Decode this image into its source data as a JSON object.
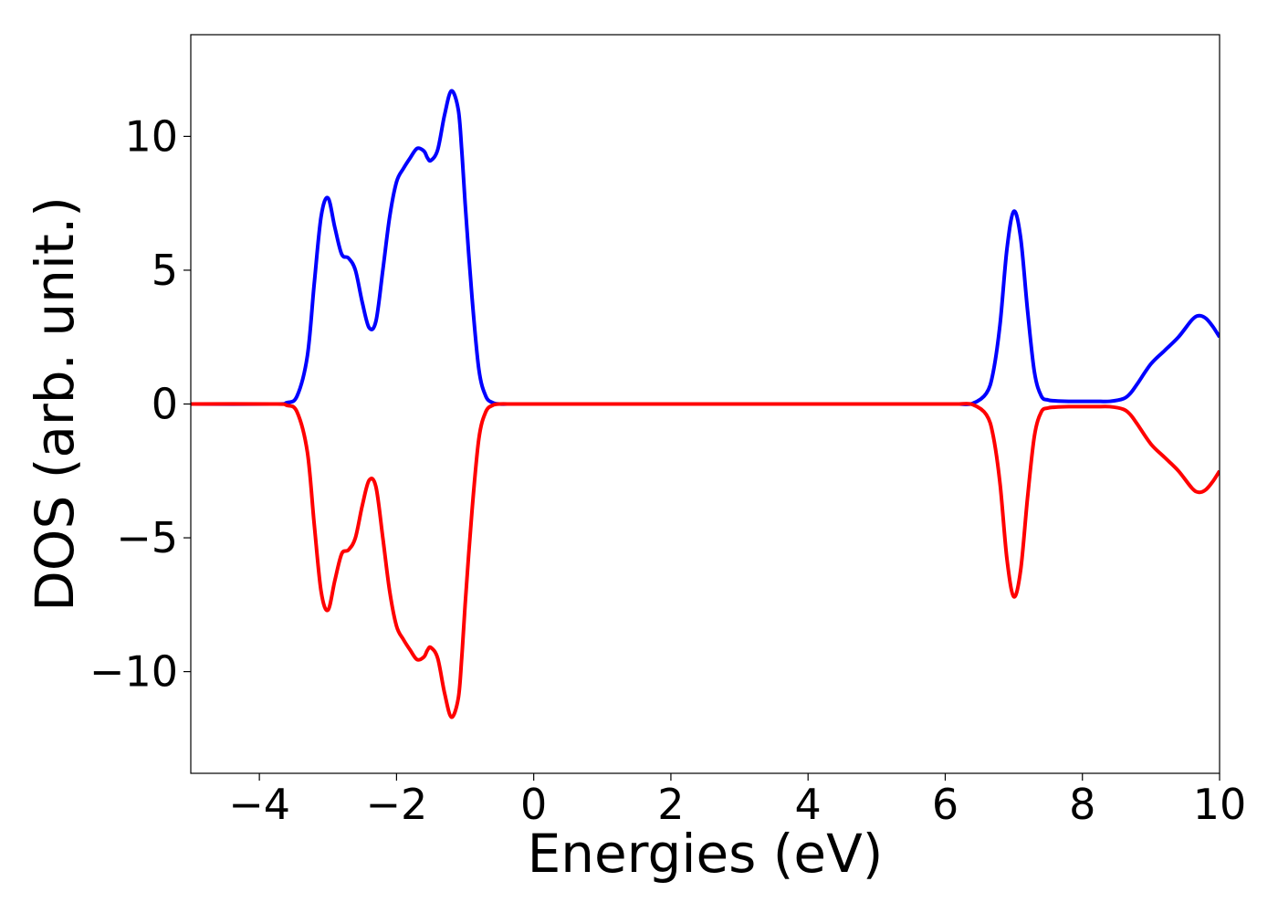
{
  "chart_data": {
    "type": "line",
    "title": "",
    "xlabel": "Energies (eV)",
    "ylabel": "DOS (arb. unit.)",
    "xlim": [
      -5,
      10
    ],
    "ylim": [
      -13.8,
      13.8
    ],
    "xticks": [
      -4,
      -2,
      0,
      2,
      4,
      6,
      8,
      10
    ],
    "yticks": [
      -10,
      -5,
      0,
      5,
      10
    ],
    "xtick_labels": [
      "−4",
      "−2",
      "0",
      "2",
      "4",
      "6",
      "8",
      "10"
    ],
    "ytick_labels": [
      "−10",
      "−5",
      "0",
      "5",
      "10"
    ],
    "grid": false,
    "legend": "none",
    "series": [
      {
        "color": "#0000ff",
        "x": [
          -5,
          -3.8,
          -3.6,
          -3.45,
          -3.3,
          -3.2,
          -3.1,
          -3.0,
          -2.9,
          -2.8,
          -2.7,
          -2.6,
          -2.5,
          -2.4,
          -2.3,
          -2.2,
          -2.1,
          -2.0,
          -1.9,
          -1.8,
          -1.7,
          -1.6,
          -1.55,
          -1.5,
          -1.4,
          -1.3,
          -1.2,
          -1.1,
          -1.05,
          -1.0,
          -0.9,
          -0.8,
          -0.7,
          -0.6,
          -0.5,
          -0.3,
          0,
          2,
          4,
          6,
          6.2,
          6.4,
          6.6,
          6.7,
          6.8,
          6.9,
          7.0,
          7.1,
          7.2,
          7.3,
          7.4,
          7.5,
          7.6,
          7.8,
          8.0,
          8.2,
          8.4,
          8.6,
          8.7,
          8.8,
          9.0,
          9.2,
          9.4,
          9.6,
          9.7,
          9.8,
          9.9,
          10.0
        ],
        "y": [
          0,
          0,
          0.05,
          0.3,
          1.8,
          4.5,
          7.0,
          7.7,
          6.6,
          5.6,
          5.45,
          5.0,
          3.8,
          2.85,
          3.1,
          5.0,
          7.0,
          8.3,
          8.8,
          9.2,
          9.55,
          9.45,
          9.2,
          9.1,
          9.5,
          10.8,
          11.7,
          11.0,
          9.5,
          7.5,
          4.0,
          1.3,
          0.3,
          0.05,
          0.0,
          0.0,
          0,
          0,
          0,
          0,
          0,
          0.02,
          0.4,
          1.2,
          3.0,
          5.8,
          7.2,
          6.2,
          3.5,
          1.2,
          0.3,
          0.15,
          0.12,
          0.1,
          0.1,
          0.1,
          0.1,
          0.2,
          0.4,
          0.75,
          1.5,
          2.0,
          2.5,
          3.15,
          3.3,
          3.2,
          2.9,
          2.5
        ]
      },
      {
        "color": "#ff0000",
        "x": [
          -5,
          -3.8,
          -3.6,
          -3.45,
          -3.3,
          -3.2,
          -3.1,
          -3.0,
          -2.9,
          -2.8,
          -2.7,
          -2.6,
          -2.5,
          -2.4,
          -2.3,
          -2.2,
          -2.1,
          -2.0,
          -1.9,
          -1.8,
          -1.7,
          -1.6,
          -1.55,
          -1.5,
          -1.4,
          -1.3,
          -1.2,
          -1.1,
          -1.05,
          -1.0,
          -0.9,
          -0.8,
          -0.7,
          -0.6,
          -0.5,
          -0.3,
          0,
          2,
          4,
          6,
          6.2,
          6.4,
          6.6,
          6.7,
          6.8,
          6.9,
          7.0,
          7.1,
          7.2,
          7.3,
          7.4,
          7.5,
          7.6,
          7.8,
          8.0,
          8.2,
          8.4,
          8.6,
          8.7,
          8.8,
          9.0,
          9.2,
          9.4,
          9.6,
          9.7,
          9.8,
          9.9,
          10.0
        ],
        "y": [
          0,
          0,
          -0.05,
          -0.3,
          -1.8,
          -4.5,
          -7.0,
          -7.7,
          -6.6,
          -5.6,
          -5.45,
          -5.0,
          -3.8,
          -2.85,
          -3.1,
          -5.0,
          -7.0,
          -8.3,
          -8.8,
          -9.2,
          -9.55,
          -9.45,
          -9.2,
          -9.1,
          -9.5,
          -10.8,
          -11.7,
          -11.0,
          -9.5,
          -7.5,
          -4.0,
          -1.3,
          -0.3,
          -0.05,
          0.0,
          0.0,
          0,
          0,
          0,
          0,
          0,
          -0.02,
          -0.4,
          -1.2,
          -3.0,
          -5.8,
          -7.2,
          -6.2,
          -3.5,
          -1.2,
          -0.3,
          -0.15,
          -0.12,
          -0.1,
          -0.1,
          -0.1,
          -0.1,
          -0.2,
          -0.4,
          -0.75,
          -1.5,
          -2.0,
          -2.5,
          -3.15,
          -3.3,
          -3.2,
          -2.9,
          -2.5
        ]
      }
    ]
  }
}
